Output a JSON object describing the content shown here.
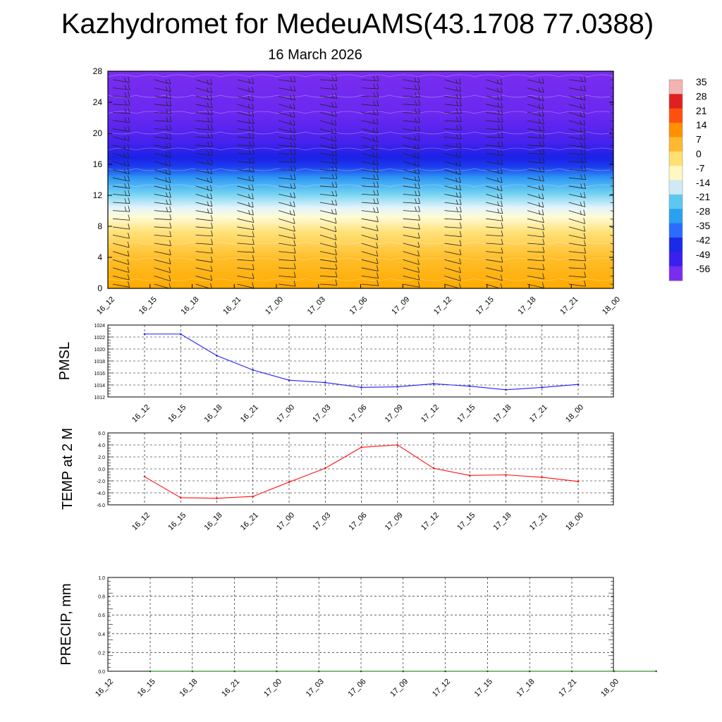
{
  "title": "Kazhydromet for MedeuAMS(43.1708 77.0388)",
  "subtitle": "16 March 2026",
  "colors": {
    "pmsl_line": "#1f1fff",
    "temp_line": "#ff1010",
    "precip_line": "#007000"
  },
  "chart_data": [
    {
      "type": "heatmap",
      "name": "cross-section",
      "title": "",
      "x_tick_labels": [
        "16_12",
        "16_15",
        "16_18",
        "16_21",
        "17_00",
        "17_03",
        "17_06",
        "17_09",
        "17_12",
        "17_15",
        "17_18",
        "17_21",
        "18_00"
      ],
      "y_ticks": [
        0,
        4,
        8,
        12,
        16,
        20,
        24,
        28
      ],
      "ylim": [
        0,
        28
      ],
      "colorbar_labels": [
        "35",
        "28",
        "21",
        "14",
        "7",
        "0",
        "-7",
        "-14",
        "-21",
        "-28",
        "-35",
        "-42",
        "-49",
        "-56"
      ],
      "colorbar_colors": [
        "#f3b3b3",
        "#e02020",
        "#ff5010",
        "#ff9000",
        "#ffb830",
        "#ffe070",
        "#fff8c0",
        "#cfeaf5",
        "#5cc8f0",
        "#2aa0f0",
        "#2b6bff",
        "#1a2ae8",
        "#3a1ff0",
        "#7a2cf0"
      ]
    },
    {
      "type": "line",
      "name": "pmsl",
      "ylabel": "PMSL",
      "categories": [
        "16_12",
        "16_15",
        "16_18",
        "16_21",
        "17_00",
        "17_03",
        "17_06",
        "17_09",
        "17_12",
        "17_15",
        "17_18",
        "17_21",
        "18_00"
      ],
      "values": [
        1022.5,
        1022.5,
        1018.9,
        1016.5,
        1014.8,
        1014.4,
        1013.6,
        1013.7,
        1014.2,
        1013.8,
        1013.2,
        1013.6,
        1014.1
      ],
      "ylim": [
        1012,
        1024
      ],
      "y_tick_labels": [
        "1012",
        "1014",
        "1016",
        "1018",
        "1020",
        "1022",
        "1024"
      ]
    },
    {
      "type": "line",
      "name": "temp",
      "ylabel": "TEMP at 2 M",
      "categories": [
        "16_12",
        "16_15",
        "16_18",
        "16_21",
        "17_00",
        "17_03",
        "17_06",
        "17_09",
        "17_12",
        "17_15",
        "17_18",
        "17_21",
        "18_00"
      ],
      "values": [
        -1.3,
        -4.8,
        -4.9,
        -4.6,
        -2.2,
        0.1,
        3.6,
        4.0,
        0.1,
        -1.1,
        -1.0,
        -1.4,
        -2.1
      ],
      "ylim": [
        -6,
        6
      ],
      "y_tick_labels": [
        "-6.0",
        "-4.0",
        "-2.0",
        "0.0",
        "2.0",
        "4.0",
        "6.0"
      ]
    },
    {
      "type": "line",
      "name": "precip",
      "ylabel": "PRECIP, mm",
      "categories": [
        "16_12",
        "16_15",
        "16_18",
        "16_21",
        "17_00",
        "17_03",
        "17_06",
        "17_09",
        "17_12",
        "17_15",
        "17_18",
        "17_21",
        "18_00"
      ],
      "values": [
        0,
        0,
        0,
        0,
        0,
        0,
        0,
        0,
        0,
        0,
        0,
        0,
        0
      ],
      "ylim": [
        0,
        1
      ],
      "y_tick_labels": [
        "0.0",
        "0.2",
        "0.4",
        "0.6",
        "0.8",
        "1.0"
      ]
    }
  ]
}
